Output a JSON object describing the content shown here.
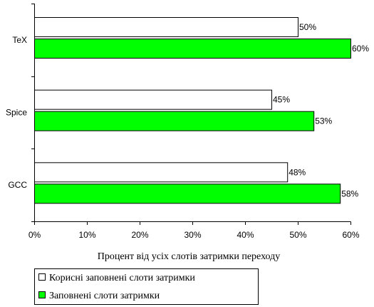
{
  "chart_data": {
    "type": "bar",
    "orientation": "horizontal",
    "categories": [
      "TeX",
      "Spice",
      "GCC"
    ],
    "series": [
      {
        "name": "Корисні заповнені слоти затримки",
        "values": [
          50,
          45,
          48
        ],
        "color": "#ffffff"
      },
      {
        "name": "Заповнені слоти затримки",
        "values": [
          60,
          53,
          58
        ],
        "color": "#00ff00"
      }
    ],
    "value_suffix": "%",
    "xlabel": "Процент від усіх слотів затримки переходу",
    "ylabel": "",
    "xlim": [
      0,
      60
    ],
    "x_ticks": [
      "0%",
      "10%",
      "20%",
      "30%",
      "40%",
      "50%",
      "60%"
    ],
    "grid": false,
    "legend_position": "bottom-left"
  }
}
